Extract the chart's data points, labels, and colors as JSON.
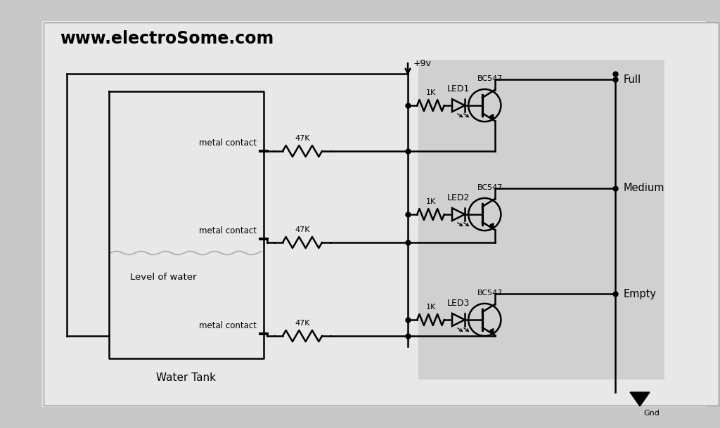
{
  "title": "www.electroSome.com",
  "bg_outer": "#c8c8c8",
  "bg_inner": "#e8e8e8",
  "bg_gray_box": "#d0d0d0",
  "line_color": "#000000",
  "text_color": "#000000",
  "tank_label": "Water Tank",
  "water_label": "Level of water",
  "metal_contacts": [
    "metal contact",
    "metal contact",
    "metal contact"
  ],
  "resistor_47k": "47K",
  "resistor_1k": "1K",
  "led_labels": [
    "LED1",
    "LED2",
    "LED3"
  ],
  "transistor_label": "BC547",
  "level_labels": [
    "Full",
    "Medium",
    "Empty"
  ],
  "power_label": "+9v",
  "gnd_label": "Gnd",
  "figsize": [
    10.24,
    6.09
  ],
  "dpi": 100
}
